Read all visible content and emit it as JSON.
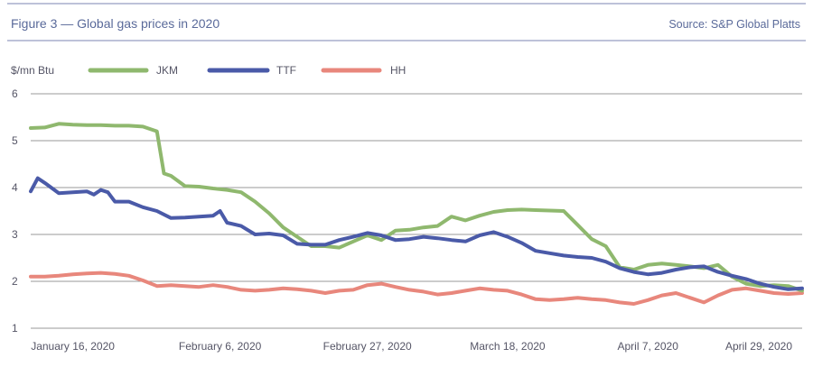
{
  "header": {
    "title": "Figure 3 — Global gas prices in 2020",
    "source": "Source: S&P Global Platts"
  },
  "colors": {
    "title": "#5a6a9a",
    "rule": "#7b86b3",
    "grid": "#9a9a9a",
    "text": "#555566"
  },
  "chart_data": {
    "type": "line",
    "title": "Figure 3 — Global gas prices in 2020",
    "ylabel": "$/mn Btu",
    "xlabel": "",
    "ylim": [
      1,
      6
    ],
    "y_ticks": [
      "1",
      "2",
      "3",
      "4",
      "5",
      "6"
    ],
    "x_ticks": [
      "January 16, 2020",
      "February 6, 2020",
      "February 27, 2020",
      "March 18, 2020",
      "April 7, 2020",
      "April 29, 2020"
    ],
    "x_tick_positions": [
      0,
      21,
      42,
      62,
      82,
      104
    ],
    "xlim": [
      -6,
      104
    ],
    "grid": "horizontal",
    "legend_position": "top-left",
    "series": [
      {
        "name": "JKM",
        "color": "#8fb86e",
        "x": [
          -6,
          -4,
          -2,
          0,
          2,
          4,
          6,
          8,
          10,
          12,
          13,
          14,
          16,
          18,
          20,
          22,
          24,
          26,
          28,
          30,
          32,
          34,
          36,
          38,
          40,
          42,
          44,
          46,
          48,
          50,
          52,
          54,
          56,
          58,
          60,
          62,
          64,
          66,
          68,
          70,
          72,
          74,
          76,
          78,
          80,
          82,
          84,
          86,
          88,
          90,
          92,
          94,
          96,
          98,
          100,
          102,
          104
        ],
        "y": [
          5.27,
          5.28,
          5.36,
          5.34,
          5.33,
          5.33,
          5.32,
          5.32,
          5.3,
          5.2,
          4.3,
          4.25,
          4.03,
          4.02,
          3.98,
          3.95,
          3.9,
          3.7,
          3.45,
          3.15,
          2.95,
          2.75,
          2.75,
          2.72,
          2.85,
          2.98,
          2.88,
          3.08,
          3.1,
          3.15,
          3.18,
          3.38,
          3.3,
          3.4,
          3.48,
          3.52,
          3.53,
          3.52,
          3.51,
          3.5,
          3.2,
          2.9,
          2.75,
          2.3,
          2.25,
          2.35,
          2.38,
          2.35,
          2.32,
          2.28,
          2.35,
          2.1,
          1.95,
          1.9,
          1.92,
          1.9,
          1.8
        ]
      },
      {
        "name": "TTF",
        "color": "#4a5aa8",
        "x": [
          -6,
          -5,
          -4,
          -2,
          0,
          2,
          3,
          4,
          5,
          6,
          8,
          10,
          12,
          14,
          16,
          18,
          20,
          21,
          22,
          24,
          26,
          28,
          30,
          32,
          34,
          36,
          38,
          40,
          42,
          44,
          46,
          48,
          50,
          52,
          54,
          56,
          58,
          60,
          61,
          62,
          64,
          66,
          68,
          70,
          72,
          74,
          76,
          78,
          80,
          82,
          84,
          86,
          88,
          90,
          92,
          94,
          96,
          98,
          100,
          102,
          104
        ],
        "y": [
          3.92,
          4.2,
          4.1,
          3.88,
          3.9,
          3.92,
          3.85,
          3.95,
          3.9,
          3.7,
          3.7,
          3.58,
          3.5,
          3.35,
          3.36,
          3.38,
          3.4,
          3.5,
          3.25,
          3.18,
          3.0,
          3.02,
          2.98,
          2.8,
          2.78,
          2.78,
          2.88,
          2.95,
          3.03,
          2.98,
          2.88,
          2.9,
          2.95,
          2.92,
          2.88,
          2.85,
          2.98,
          3.05,
          3.0,
          2.95,
          2.82,
          2.65,
          2.6,
          2.55,
          2.52,
          2.5,
          2.42,
          2.28,
          2.2,
          2.15,
          2.18,
          2.25,
          2.3,
          2.32,
          2.2,
          2.12,
          2.05,
          1.95,
          1.88,
          1.83,
          1.85
        ]
      },
      {
        "name": "HH",
        "color": "#e8877c",
        "x": [
          -6,
          -4,
          -2,
          0,
          2,
          4,
          6,
          8,
          10,
          12,
          14,
          16,
          18,
          20,
          22,
          24,
          26,
          28,
          30,
          32,
          34,
          36,
          38,
          40,
          42,
          44,
          46,
          48,
          50,
          52,
          54,
          56,
          58,
          60,
          62,
          64,
          66,
          68,
          70,
          72,
          74,
          76,
          78,
          80,
          82,
          84,
          86,
          88,
          90,
          92,
          94,
          96,
          98,
          100,
          102,
          104
        ],
        "y": [
          2.1,
          2.1,
          2.12,
          2.15,
          2.17,
          2.18,
          2.16,
          2.12,
          2.02,
          1.9,
          1.92,
          1.9,
          1.88,
          1.92,
          1.88,
          1.82,
          1.8,
          1.82,
          1.85,
          1.83,
          1.8,
          1.75,
          1.8,
          1.82,
          1.92,
          1.95,
          1.88,
          1.82,
          1.78,
          1.72,
          1.75,
          1.8,
          1.85,
          1.82,
          1.8,
          1.72,
          1.62,
          1.6,
          1.62,
          1.65,
          1.62,
          1.6,
          1.55,
          1.52,
          1.6,
          1.7,
          1.75,
          1.65,
          1.55,
          1.7,
          1.82,
          1.85,
          1.8,
          1.75,
          1.73,
          1.75
        ]
      }
    ]
  }
}
